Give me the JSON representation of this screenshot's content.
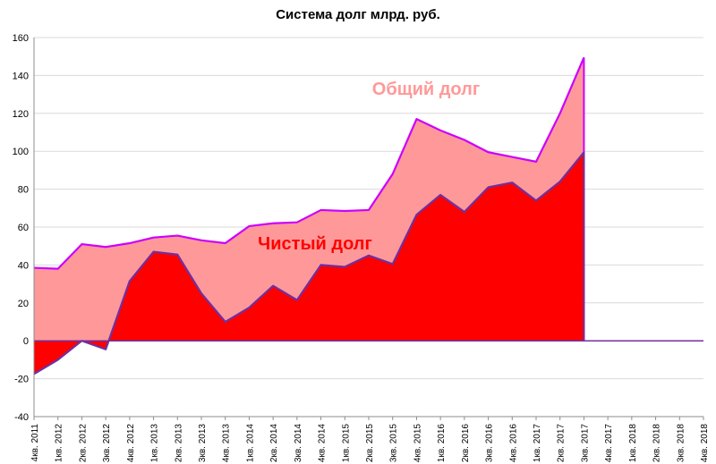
{
  "chart_data": {
    "type": "area",
    "title": "Система долг млрд. руб.",
    "xlabel": "",
    "ylabel": "",
    "ylim": [
      -40,
      160
    ],
    "yticks": [
      -40,
      -20,
      0,
      20,
      40,
      60,
      80,
      100,
      120,
      140,
      160
    ],
    "grid": true,
    "legend": "none",
    "categories": [
      "4кв. 2011",
      "1кв. 2012",
      "2кв. 2012",
      "3кв. 2012",
      "4кв. 2012",
      "1кв. 2013",
      "2кв. 2013",
      "3кв. 2013",
      "4кв. 2013",
      "1кв. 2014",
      "2кв. 2014",
      "3кв. 2014",
      "4кв. 2014",
      "1кв. 2015",
      "2кв. 2015",
      "3кв. 2015",
      "4кв. 2015",
      "1кв. 2016",
      "2кв. 2016",
      "3кв. 2016",
      "4кв. 2016",
      "1кв. 2017",
      "2кв. 2017",
      "3кв. 2017",
      "4кв. 2017",
      "1кв. 2018",
      "2кв. 2018",
      "3кв. 2018",
      "4кв. 2018"
    ],
    "series": [
      {
        "name": "Общий долг",
        "color": "#ff9999",
        "line_color": "#cc00ff",
        "values": [
          38.5,
          38,
          51,
          49.5,
          51.5,
          54.5,
          55.5,
          53,
          51.5,
          60.5,
          62,
          62.5,
          69,
          68.5,
          69,
          88,
          117,
          111,
          106,
          99.5,
          97,
          94.5,
          120,
          149.5,
          null,
          null,
          null,
          null,
          null
        ]
      },
      {
        "name": "Чистый долг",
        "color": "#ff0000",
        "line_color": "#7030a0",
        "values": [
          -17.5,
          -10,
          0,
          -4.5,
          31.5,
          47,
          45.5,
          25,
          10,
          17.5,
          29,
          21.5,
          40,
          39,
          45,
          40.5,
          66.5,
          77,
          68,
          81,
          83.5,
          74,
          84,
          99.5,
          null,
          null,
          null,
          null,
          null
        ]
      }
    ]
  }
}
